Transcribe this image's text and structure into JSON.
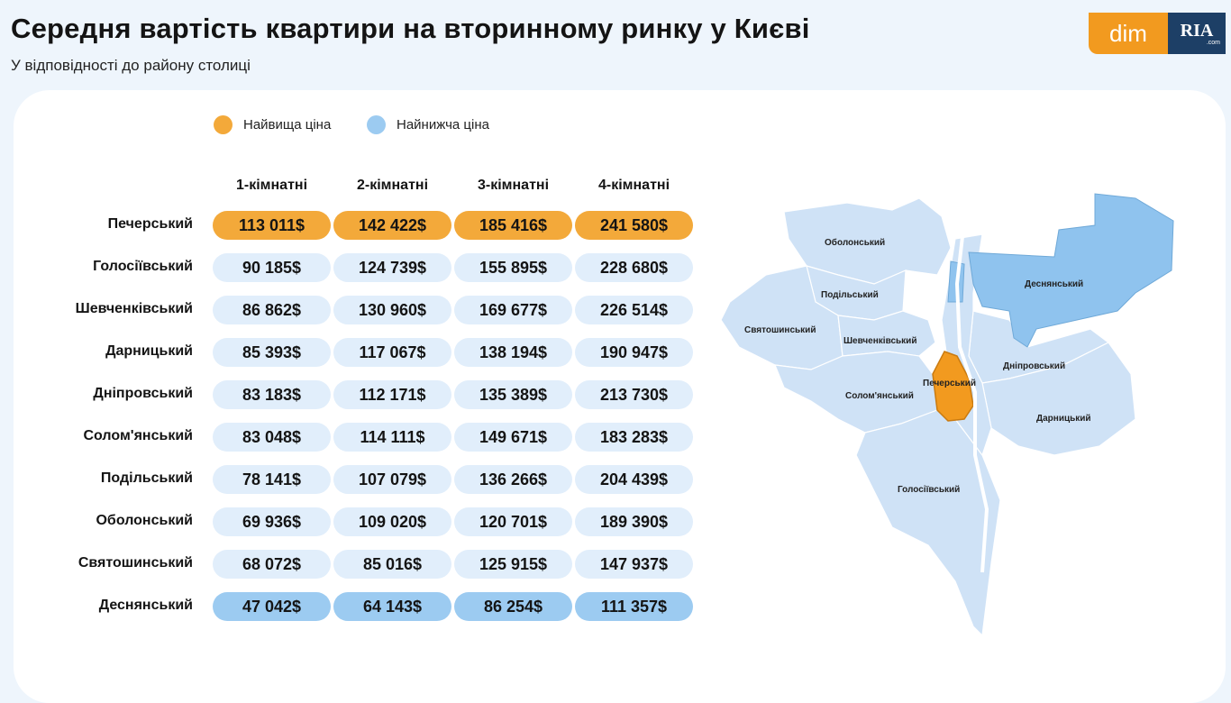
{
  "header": {
    "title": "Середня вартість квартири на вторинному ринку у Києві",
    "subtitle": "У відповідності до району столиці"
  },
  "logo": {
    "dim": "dim",
    "ria": "RIA",
    "ria_sub": ".com"
  },
  "legend": [
    {
      "label": "Найвища ціна",
      "color": "#f3a93a"
    },
    {
      "label": "Найнижча ціна",
      "color": "#9ccbf1"
    }
  ],
  "colors": {
    "high": "#f3a93a",
    "low": "#9ccbf1",
    "normal": "#e1eefb",
    "map_base": "#cfe2f6",
    "map_low": "#8fc3ee",
    "map_high": "#f29a1f"
  },
  "chart_data": {
    "type": "table",
    "columns": [
      "1-кімнатні",
      "2-кімнатні",
      "3-кімнатні",
      "4-кімнатні"
    ],
    "rows": [
      {
        "district": "Печерський",
        "values": [
          "113 011$",
          "142 422$",
          "185 416$",
          "241 580$"
        ],
        "highlight": "high"
      },
      {
        "district": "Голосіївський",
        "values": [
          "90 185$",
          "124 739$",
          "155 895$",
          "228 680$"
        ]
      },
      {
        "district": "Шевченківський",
        "values": [
          "86 862$",
          "130 960$",
          "169 677$",
          "226 514$"
        ]
      },
      {
        "district": "Дарницький",
        "values": [
          "85 393$",
          "117 067$",
          "138 194$",
          "190 947$"
        ]
      },
      {
        "district": "Дніпровський",
        "values": [
          "83 183$",
          "112 171$",
          "135 389$",
          "213 730$"
        ]
      },
      {
        "district": "Солом'янський",
        "values": [
          "83 048$",
          "114 111$",
          "149 671$",
          "183 283$"
        ]
      },
      {
        "district": "Подільський",
        "values": [
          "78 141$",
          "107 079$",
          "136 266$",
          "204 439$"
        ]
      },
      {
        "district": "Оболонський",
        "values": [
          "69 936$",
          "109 020$",
          "120 701$",
          "189 390$"
        ]
      },
      {
        "district": "Святошинський",
        "values": [
          "68 072$",
          "85 016$",
          "125 915$",
          "147 937$"
        ]
      },
      {
        "district": "Деснянський",
        "values": [
          "47 042$",
          "64 143$",
          "86 254$",
          "111 357$"
        ],
        "highlight": "low"
      }
    ]
  },
  "map": {
    "labels": {
      "obolonskyi": "Оболонський",
      "desnianskyi": "Деснянський",
      "podilskyi": "Подільський",
      "sviatoshynskyi": "Святошинський",
      "shevchenkivskyi": "Шевченківський",
      "dniprovskyi": "Дніпровський",
      "pecherskyi": "Печерський",
      "solomianskyi": "Солом'янський",
      "darnytskyi": "Дарницький",
      "holosiivskyi": "Голосіївський"
    }
  }
}
